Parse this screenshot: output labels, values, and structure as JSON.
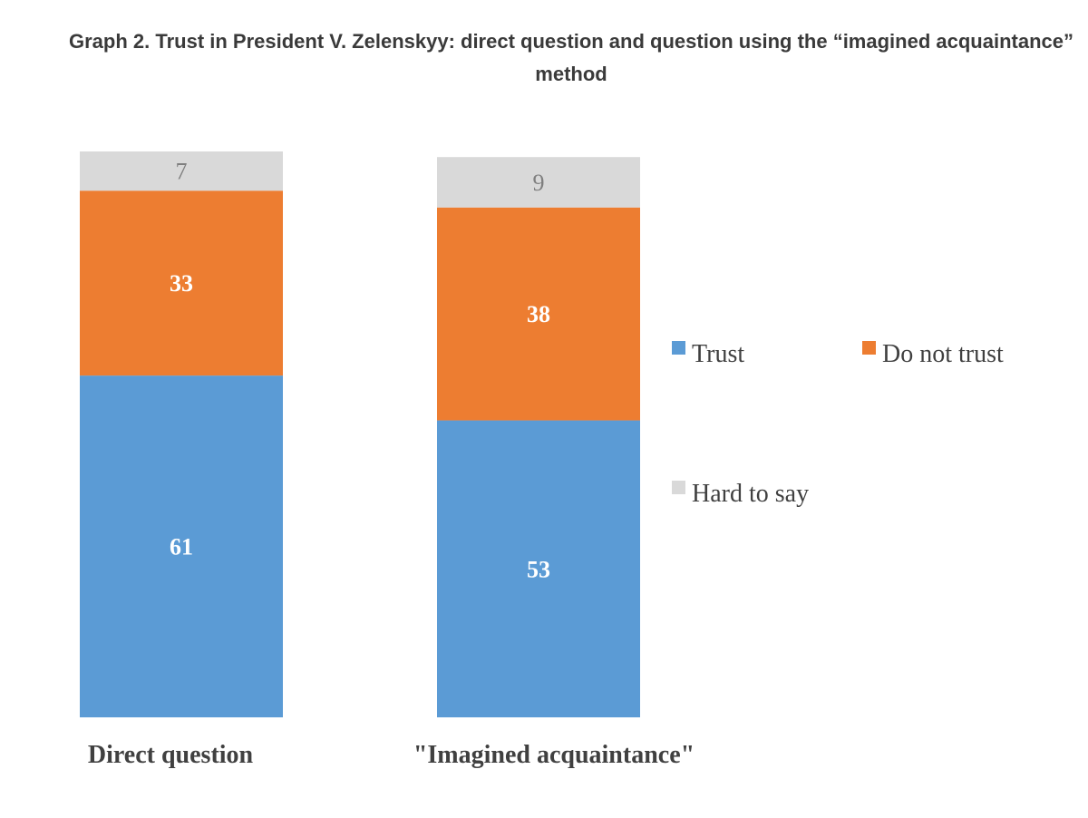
{
  "title": "Graph 2. Trust in President V. Zelenskyy: direct question and question using the “imagined acquaintance” method",
  "chart_data": {
    "type": "bar",
    "stacked": true,
    "title": "Graph 2. Trust in President V. Zelenskyy: direct question and question using the “imagined acquaintance” method",
    "categories": [
      "Direct question",
      "\"Imagined acquaintance\""
    ],
    "series": [
      {
        "name": "Trust",
        "color": "#5B9BD5",
        "values": [
          61,
          53
        ]
      },
      {
        "name": "Do not trust",
        "color": "#ED7D31",
        "values": [
          33,
          38
        ]
      },
      {
        "name": "Hard to say",
        "color": "#D9D9D9",
        "values": [
          7,
          9
        ]
      }
    ],
    "value_labels": [
      [
        "61",
        "53"
      ],
      [
        "33",
        "38"
      ],
      [
        "7",
        "9"
      ]
    ],
    "legend_position": "right",
    "xlabel": "",
    "ylabel": "",
    "ylim": [
      0,
      101
    ],
    "grid": false
  }
}
